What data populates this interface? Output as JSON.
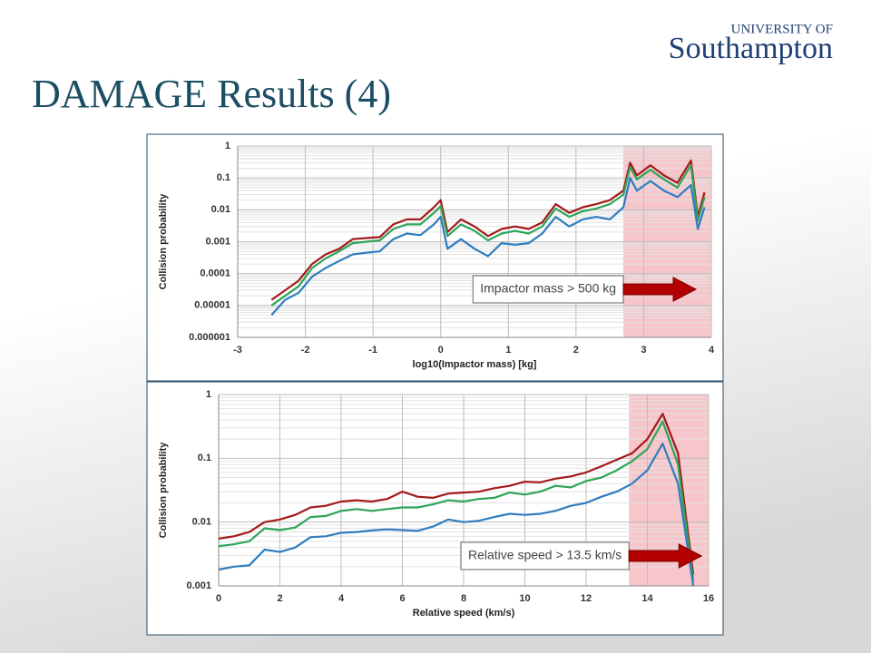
{
  "slide": {
    "title": "DAMAGE Results (4)",
    "logo_top": "UNIVERSITY OF",
    "logo_main": "Southampton"
  },
  "chart_data": [
    {
      "type": "line",
      "ylabel": "Collision probability",
      "xlabel": "log10(Impactor mass) [kg]",
      "log_y": true,
      "grid": true,
      "xlim": [
        -3,
        4
      ],
      "xticks": [
        -3,
        -2,
        -1,
        0,
        1,
        2,
        3,
        4
      ],
      "ylim": [
        1e-06,
        1
      ],
      "yticks": [
        1,
        0.1,
        0.01,
        0.001,
        0.0001,
        1e-05,
        1e-06
      ],
      "highlight": [
        2.7,
        4
      ],
      "annotation": "Impactor mass > 500 kg",
      "x": [
        -2.5,
        -2.3,
        -2.1,
        -1.9,
        -1.7,
        -1.5,
        -1.3,
        -1.1,
        -0.9,
        -0.7,
        -0.5,
        -0.3,
        -0.1,
        0,
        0.1,
        0.3,
        0.5,
        0.7,
        0.9,
        1.1,
        1.3,
        1.5,
        1.7,
        1.9,
        2.1,
        2.3,
        2.5,
        2.7,
        2.8,
        2.9,
        3.1,
        3.3,
        3.5,
        3.7,
        3.8,
        3.9
      ],
      "series": [
        {
          "color": "#a31a1a",
          "values": [
            1.5e-05,
            3e-05,
            6e-05,
            0.0002,
            0.0004,
            0.0006,
            0.0012,
            0.0013,
            0.0014,
            0.0035,
            0.005,
            0.005,
            0.012,
            0.02,
            0.002,
            0.005,
            0.003,
            0.0015,
            0.0025,
            0.003,
            0.0025,
            0.004,
            0.015,
            0.008,
            0.012,
            0.015,
            0.02,
            0.04,
            0.3,
            0.12,
            0.25,
            0.12,
            0.07,
            0.35,
            0.006,
            0.035
          ]
        },
        {
          "color": "#2ea55a",
          "values": [
            1e-05,
            2e-05,
            4e-05,
            0.00015,
            0.0003,
            0.0005,
            0.0009,
            0.001,
            0.0011,
            0.0025,
            0.0035,
            0.0035,
            0.008,
            0.013,
            0.0015,
            0.0035,
            0.0022,
            0.0011,
            0.0018,
            0.0022,
            0.0018,
            0.003,
            0.011,
            0.006,
            0.009,
            0.011,
            0.015,
            0.03,
            0.22,
            0.09,
            0.18,
            0.09,
            0.05,
            0.25,
            0.0045,
            0.025
          ]
        },
        {
          "color": "#2f7dc0",
          "values": [
            5e-06,
            1.5e-05,
            2.5e-05,
            8e-05,
            0.00015,
            0.00025,
            0.0004,
            0.00045,
            0.0005,
            0.0012,
            0.0018,
            0.0016,
            0.0035,
            0.006,
            0.0006,
            0.0012,
            0.0006,
            0.00035,
            0.0009,
            0.0008,
            0.0009,
            0.0018,
            0.006,
            0.003,
            0.005,
            0.006,
            0.005,
            0.012,
            0.1,
            0.04,
            0.08,
            0.04,
            0.025,
            0.06,
            0.0025,
            0.012
          ]
        }
      ]
    },
    {
      "type": "line",
      "ylabel": "Collision probability",
      "xlabel": "Relative speed (km/s)",
      "log_y": true,
      "grid": true,
      "xlim": [
        0,
        16
      ],
      "xticks": [
        0,
        2,
        4,
        6,
        8,
        10,
        12,
        14,
        16
      ],
      "ylim": [
        0.001,
        1
      ],
      "yticks": [
        1,
        0.1,
        0.01,
        0.001
      ],
      "highlight": [
        13.4,
        16
      ],
      "annotation": "Relative speed > 13.5 km/s",
      "x": [
        0,
        0.5,
        1,
        1.5,
        2,
        2.5,
        3,
        3.5,
        4,
        4.5,
        5,
        5.5,
        6,
        6.5,
        7,
        7.5,
        8,
        8.5,
        9,
        9.5,
        10,
        10.5,
        11,
        11.5,
        12,
        12.5,
        13,
        13.5,
        14,
        14.5,
        15,
        15.5
      ],
      "series": [
        {
          "color": "#a31a1a",
          "values": [
            0.0055,
            0.006,
            0.007,
            0.01,
            0.011,
            0.013,
            0.017,
            0.018,
            0.021,
            0.022,
            0.021,
            0.023,
            0.03,
            0.025,
            0.024,
            0.028,
            0.029,
            0.03,
            0.034,
            0.037,
            0.043,
            0.042,
            0.048,
            0.052,
            0.06,
            0.075,
            0.095,
            0.12,
            0.2,
            0.5,
            0.12,
            0.0015
          ]
        },
        {
          "color": "#2ea55a",
          "values": [
            0.0042,
            0.0045,
            0.005,
            0.008,
            0.0075,
            0.0082,
            0.012,
            0.0125,
            0.015,
            0.016,
            0.015,
            0.016,
            0.017,
            0.017,
            0.019,
            0.022,
            0.021,
            0.023,
            0.024,
            0.029,
            0.027,
            0.03,
            0.037,
            0.035,
            0.044,
            0.05,
            0.065,
            0.09,
            0.14,
            0.38,
            0.08,
            0.0012
          ]
        },
        {
          "color": "#2f7dc0",
          "values": [
            0.0018,
            0.002,
            0.0021,
            0.0037,
            0.0034,
            0.004,
            0.0058,
            0.006,
            0.0068,
            0.007,
            0.0074,
            0.0077,
            0.0075,
            0.0073,
            0.0085,
            0.011,
            0.01,
            0.0105,
            0.012,
            0.0135,
            0.013,
            0.0135,
            0.015,
            0.018,
            0.02,
            0.025,
            0.03,
            0.04,
            0.065,
            0.17,
            0.04,
            0.001
          ]
        }
      ]
    }
  ]
}
